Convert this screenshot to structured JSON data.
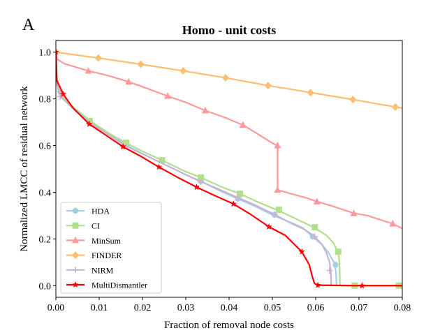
{
  "panel_label": "A",
  "chart_data": {
    "type": "line",
    "title": "Homo - unit costs",
    "xlabel": "Fraction of removal node costs",
    "ylabel": "Normalized LMCC of residual network",
    "xlim": [
      0,
      0.08
    ],
    "ylim": [
      -0.05,
      1.05
    ],
    "xticks": [
      0,
      0.01,
      0.02,
      0.03,
      0.04,
      0.05,
      0.06,
      0.07,
      0.08
    ],
    "xtick_labels": [
      "0.00",
      "0.01",
      "0.02",
      "0.03",
      "0.04",
      "0.05",
      "0.06",
      "0.07",
      "0.08"
    ],
    "yticks": [
      0,
      0.2,
      0.4,
      0.6,
      0.8,
      1.0
    ],
    "ytick_labels": [
      "0.0",
      "0.2",
      "0.4",
      "0.6",
      "0.8",
      "1.0"
    ],
    "grid": false,
    "legend_position": "lower-left",
    "series": [
      {
        "name": "HDA",
        "color": "#a6cee3",
        "marker": "circle",
        "points": [
          [
            0,
            1.0
          ],
          [
            0.0003,
            0.86
          ],
          [
            0.001,
            0.82
          ],
          [
            0.003,
            0.775
          ],
          [
            0.006,
            0.725
          ],
          [
            0.008,
            0.7
          ],
          [
            0.012,
            0.655
          ],
          [
            0.016,
            0.605
          ],
          [
            0.02,
            0.565
          ],
          [
            0.025,
            0.52
          ],
          [
            0.03,
            0.475
          ],
          [
            0.0335,
            0.447
          ],
          [
            0.038,
            0.405
          ],
          [
            0.042,
            0.372
          ],
          [
            0.046,
            0.34
          ],
          [
            0.05,
            0.303
          ],
          [
            0.054,
            0.272
          ],
          [
            0.057,
            0.248
          ],
          [
            0.0593,
            0.21
          ],
          [
            0.0615,
            0.175
          ],
          [
            0.063,
            0.14
          ],
          [
            0.0642,
            0.1
          ],
          [
            0.0647,
            0.06
          ],
          [
            0.0648,
            0.0
          ],
          [
            0.065,
            0.0
          ]
        ],
        "markers": [
          [
            0.001,
            0.83
          ],
          [
            0.0335,
            0.447
          ],
          [
            0.042,
            0.372
          ],
          [
            0.0505,
            0.303
          ],
          [
            0.0593,
            0.21
          ],
          [
            0.0646,
            0.089
          ]
        ]
      },
      {
        "name": "CI",
        "color": "#b2df8a",
        "marker": "square",
        "points": [
          [
            0,
            1.0
          ],
          [
            0.0003,
            0.87
          ],
          [
            0.001,
            0.82
          ],
          [
            0.004,
            0.765
          ],
          [
            0.008,
            0.705
          ],
          [
            0.012,
            0.655
          ],
          [
            0.0162,
            0.612
          ],
          [
            0.02,
            0.575
          ],
          [
            0.0245,
            0.537
          ],
          [
            0.03,
            0.488
          ],
          [
            0.0335,
            0.463
          ],
          [
            0.038,
            0.425
          ],
          [
            0.0425,
            0.393
          ],
          [
            0.047,
            0.355
          ],
          [
            0.051,
            0.325
          ],
          [
            0.055,
            0.29
          ],
          [
            0.0595,
            0.25
          ],
          [
            0.0625,
            0.215
          ],
          [
            0.064,
            0.185
          ],
          [
            0.0652,
            0.145
          ],
          [
            0.0655,
            0.1
          ],
          [
            0.0656,
            0.0
          ],
          [
            0.07,
            0.0
          ],
          [
            0.08,
            0.0
          ]
        ],
        "markers": [
          [
            0.0078,
            0.705
          ],
          [
            0.0162,
            0.612
          ],
          [
            0.0245,
            0.537
          ],
          [
            0.0335,
            0.463
          ],
          [
            0.0425,
            0.393
          ],
          [
            0.0515,
            0.325
          ],
          [
            0.0598,
            0.25
          ],
          [
            0.0652,
            0.145
          ],
          [
            0.069,
            0.0
          ],
          [
            0.0792,
            0.0
          ]
        ]
      },
      {
        "name": "MinSum",
        "color": "#fb9a99",
        "marker": "triangle",
        "points": [
          [
            0,
            1.0
          ],
          [
            0.0003,
            0.97
          ],
          [
            0.002,
            0.95
          ],
          [
            0.0075,
            0.92
          ],
          [
            0.012,
            0.9
          ],
          [
            0.0168,
            0.873
          ],
          [
            0.021,
            0.845
          ],
          [
            0.0258,
            0.812
          ],
          [
            0.03,
            0.785
          ],
          [
            0.0345,
            0.75
          ],
          [
            0.039,
            0.72
          ],
          [
            0.0432,
            0.688
          ],
          [
            0.047,
            0.645
          ],
          [
            0.0505,
            0.605
          ],
          [
            0.0512,
            0.6
          ],
          [
            0.0512,
            0.41
          ],
          [
            0.054,
            0.395
          ],
          [
            0.058,
            0.375
          ],
          [
            0.0603,
            0.36
          ],
          [
            0.064,
            0.34
          ],
          [
            0.0688,
            0.31
          ],
          [
            0.072,
            0.3
          ],
          [
            0.0778,
            0.265
          ],
          [
            0.08,
            0.245
          ]
        ],
        "markers": [
          [
            0.0075,
            0.92
          ],
          [
            0.0168,
            0.873
          ],
          [
            0.0258,
            0.812
          ],
          [
            0.0345,
            0.75
          ],
          [
            0.0432,
            0.688
          ],
          [
            0.0512,
            0.6
          ],
          [
            0.0512,
            0.41
          ],
          [
            0.0603,
            0.36
          ],
          [
            0.0688,
            0.31
          ],
          [
            0.0778,
            0.265
          ]
        ]
      },
      {
        "name": "FINDER",
        "color": "#fdbf6f",
        "marker": "diamond",
        "points": [
          [
            0,
            1.0
          ],
          [
            0.0098,
            0.975
          ],
          [
            0.0196,
            0.948
          ],
          [
            0.0294,
            0.92
          ],
          [
            0.0392,
            0.89
          ],
          [
            0.049,
            0.857
          ],
          [
            0.0588,
            0.827
          ],
          [
            0.0686,
            0.797
          ],
          [
            0.0784,
            0.765
          ],
          [
            0.08,
            0.76
          ]
        ],
        "markers": [
          [
            0.0,
            1.0
          ],
          [
            0.0098,
            0.975
          ],
          [
            0.0196,
            0.948
          ],
          [
            0.0294,
            0.92
          ],
          [
            0.0392,
            0.89
          ],
          [
            0.049,
            0.857
          ],
          [
            0.0588,
            0.827
          ],
          [
            0.0686,
            0.797
          ],
          [
            0.0784,
            0.765
          ]
        ]
      },
      {
        "name": "NIRM",
        "color": "#cab2d6",
        "marker": "plus",
        "points": [
          [
            0,
            1.0
          ],
          [
            0.0003,
            0.86
          ],
          [
            0.001,
            0.81
          ],
          [
            0.004,
            0.76
          ],
          [
            0.008,
            0.695
          ],
          [
            0.012,
            0.648
          ],
          [
            0.016,
            0.6
          ],
          [
            0.0205,
            0.56
          ],
          [
            0.025,
            0.52
          ],
          [
            0.0295,
            0.48
          ],
          [
            0.0335,
            0.445
          ],
          [
            0.038,
            0.41
          ],
          [
            0.042,
            0.377
          ],
          [
            0.046,
            0.345
          ],
          [
            0.0505,
            0.305
          ],
          [
            0.054,
            0.27
          ],
          [
            0.0575,
            0.24
          ],
          [
            0.0598,
            0.21
          ],
          [
            0.0615,
            0.175
          ],
          [
            0.0625,
            0.14
          ],
          [
            0.0632,
            0.1
          ],
          [
            0.0635,
            0.06
          ],
          [
            0.0636,
            0.0
          ]
        ],
        "markers": [
          [
            0.001,
            0.81
          ],
          [
            0.0335,
            0.445
          ],
          [
            0.042,
            0.377
          ],
          [
            0.0505,
            0.305
          ],
          [
            0.0598,
            0.21
          ],
          [
            0.0632,
            0.065
          ]
        ]
      },
      {
        "name": "MultiDismantler",
        "color": "#ff0000",
        "marker": "star",
        "points": [
          [
            0,
            1.0
          ],
          [
            0.0002,
            0.88
          ],
          [
            0.0017,
            0.82
          ],
          [
            0.004,
            0.76
          ],
          [
            0.0077,
            0.692
          ],
          [
            0.0115,
            0.645
          ],
          [
            0.0155,
            0.595
          ],
          [
            0.0195,
            0.555
          ],
          [
            0.0238,
            0.508
          ],
          [
            0.028,
            0.465
          ],
          [
            0.0325,
            0.422
          ],
          [
            0.037,
            0.383
          ],
          [
            0.041,
            0.35
          ],
          [
            0.045,
            0.305
          ],
          [
            0.0492,
            0.252
          ],
          [
            0.053,
            0.215
          ],
          [
            0.0568,
            0.145
          ],
          [
            0.0585,
            0.09
          ],
          [
            0.0592,
            0.04
          ],
          [
            0.0597,
            0.01
          ],
          [
            0.0605,
            0.002
          ],
          [
            0.07,
            0.0
          ],
          [
            0.08,
            0.0
          ]
        ],
        "markers": [
          [
            0.0,
            1.0
          ],
          [
            0.0017,
            0.82
          ],
          [
            0.0077,
            0.692
          ],
          [
            0.0155,
            0.595
          ],
          [
            0.0238,
            0.508
          ],
          [
            0.0325,
            0.422
          ],
          [
            0.041,
            0.35
          ],
          [
            0.0492,
            0.252
          ],
          [
            0.0568,
            0.145
          ],
          [
            0.0605,
            0.002
          ],
          [
            0.0707,
            0.0
          ]
        ]
      }
    ]
  }
}
